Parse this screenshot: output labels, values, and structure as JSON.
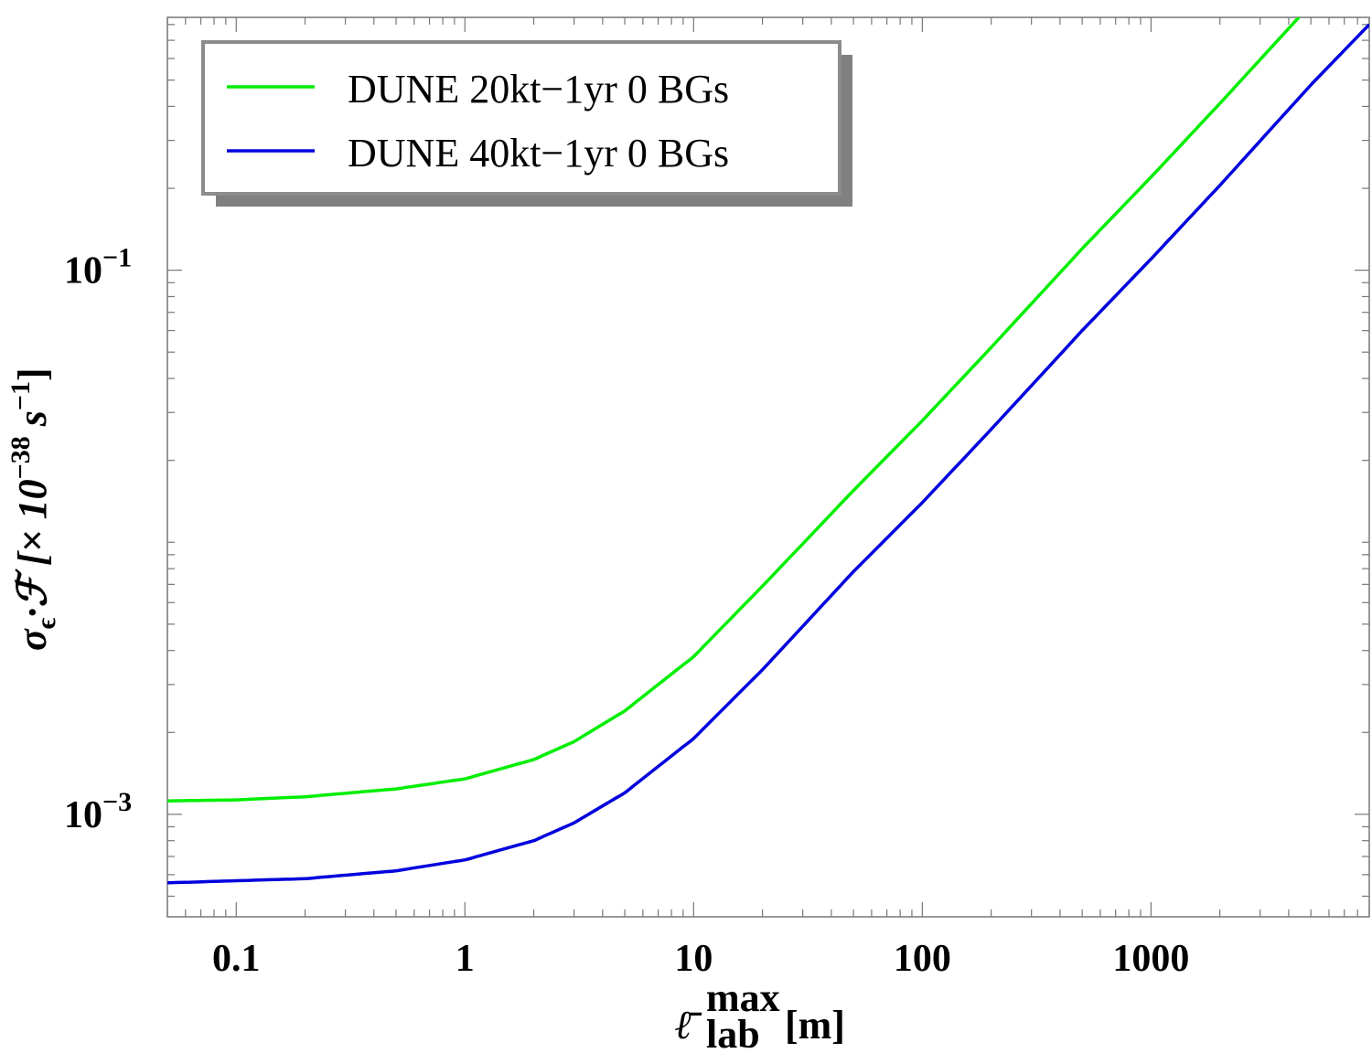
{
  "chart_data": {
    "type": "line",
    "x_scale": "log",
    "y_scale": "log",
    "xlim": [
      0.05,
      9000
    ],
    "ylim": [
      0.00042,
      0.85
    ],
    "x_ticks": [
      {
        "value": 0.1,
        "label": "0.1"
      },
      {
        "value": 1,
        "label": "1"
      },
      {
        "value": 10,
        "label": "10"
      },
      {
        "value": 100,
        "label": "100"
      },
      {
        "value": 1000,
        "label": "1000"
      }
    ],
    "y_ticks": [
      {
        "value": 0.001,
        "base": "10",
        "exp": "−3"
      },
      {
        "value": 0.1,
        "base": "10",
        "exp": "−1"
      }
    ],
    "xlabel": {
      "main": "ℓ̄",
      "sup": "max",
      "sub": "lab",
      "unit": "[m]"
    },
    "ylabel": {
      "main": "σ",
      "sub": "ϵ",
      "dot": "·ℱ [× 10",
      "exp1": "−38",
      "s": " s",
      "exp2": "−1",
      "close": "]"
    },
    "grid": false,
    "legend_position": "top-left",
    "series": [
      {
        "name": "DUNE 20kt−1yr 0 BGs",
        "color": "#00ee00",
        "x": [
          0.05,
          0.1,
          0.2,
          0.5,
          1,
          2,
          3,
          5,
          10,
          20,
          50,
          100,
          200,
          500,
          1000,
          2000,
          5000,
          9000
        ],
        "y": [
          0.00112,
          0.00113,
          0.00116,
          0.00124,
          0.00135,
          0.00159,
          0.00185,
          0.0024,
          0.0038,
          0.0069,
          0.0155,
          0.028,
          0.052,
          0.12,
          0.22,
          0.41,
          0.95,
          1.6
        ]
      },
      {
        "name": "DUNE 40kt−1yr 0 BGs",
        "color": "#0000dd",
        "x": [
          0.05,
          0.1,
          0.2,
          0.5,
          1,
          2,
          3,
          5,
          10,
          20,
          50,
          100,
          200,
          500,
          1000,
          2000,
          5000,
          9000
        ],
        "y": [
          0.00056,
          0.00057,
          0.00058,
          0.00062,
          0.00068,
          0.0008,
          0.00093,
          0.0012,
          0.0019,
          0.0034,
          0.0078,
          0.014,
          0.026,
          0.06,
          0.11,
          0.205,
          0.48,
          0.8
        ]
      }
    ]
  }
}
